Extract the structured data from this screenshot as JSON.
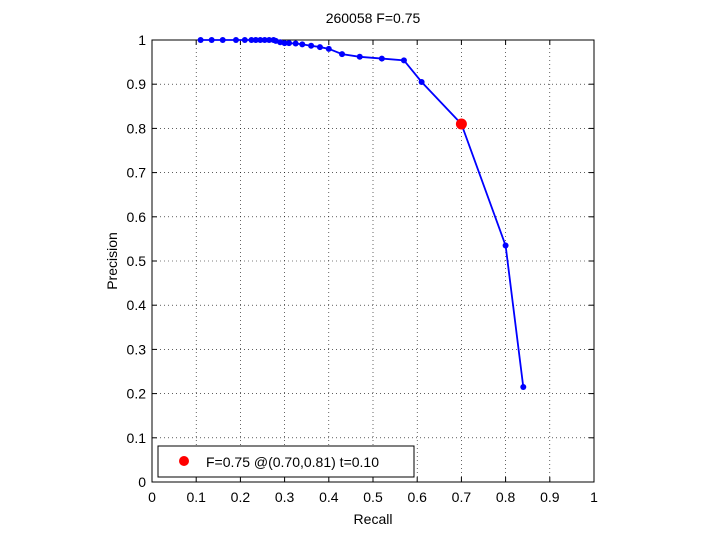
{
  "chart_data": {
    "type": "line",
    "title": "260058 F=0.75",
    "xlabel": "Recall",
    "ylabel": "Precision",
    "xlim": [
      0,
      1
    ],
    "ylim": [
      0,
      1
    ],
    "xticks": [
      0,
      0.1,
      0.2,
      0.3,
      0.4,
      0.5,
      0.6,
      0.7,
      0.8,
      0.9,
      1
    ],
    "yticks": [
      0,
      0.1,
      0.2,
      0.3,
      0.4,
      0.5,
      0.6,
      0.7,
      0.8,
      0.9,
      1
    ],
    "xtick_labels": [
      "0",
      "0.1",
      "0.2",
      "0.3",
      "0.4",
      "0.5",
      "0.6",
      "0.7",
      "0.8",
      "0.9",
      "1"
    ],
    "ytick_labels": [
      "0",
      "0.1",
      "0.2",
      "0.3",
      "0.4",
      "0.5",
      "0.6",
      "0.7",
      "0.8",
      "0.9",
      "1"
    ],
    "grid": true,
    "series": [
      {
        "color": "#0000ff",
        "marker": "dot",
        "x": [
          0.11,
          0.135,
          0.16,
          0.19,
          0.21,
          0.225,
          0.235,
          0.245,
          0.255,
          0.265,
          0.275,
          0.28,
          0.29,
          0.3,
          0.31,
          0.325,
          0.34,
          0.36,
          0.38,
          0.4,
          0.43,
          0.47,
          0.52,
          0.57,
          0.61,
          0.7,
          0.8,
          0.84
        ],
        "y": [
          1.0,
          1.0,
          1.0,
          1.0,
          1.0,
          1.0,
          1.0,
          1.0,
          1.0,
          1.0,
          1.0,
          0.998,
          0.995,
          0.993,
          0.993,
          0.992,
          0.99,
          0.987,
          0.984,
          0.98,
          0.968,
          0.962,
          0.958,
          0.954,
          0.905,
          0.81,
          0.535,
          0.215
        ]
      }
    ],
    "highlight": {
      "x": 0.7,
      "y": 0.81,
      "color": "#ff0000"
    },
    "legend": {
      "position": "bottom-left",
      "label": "F=0.75 @(0.70,0.81) t=0.10",
      "marker_color": "#ff0000"
    }
  }
}
